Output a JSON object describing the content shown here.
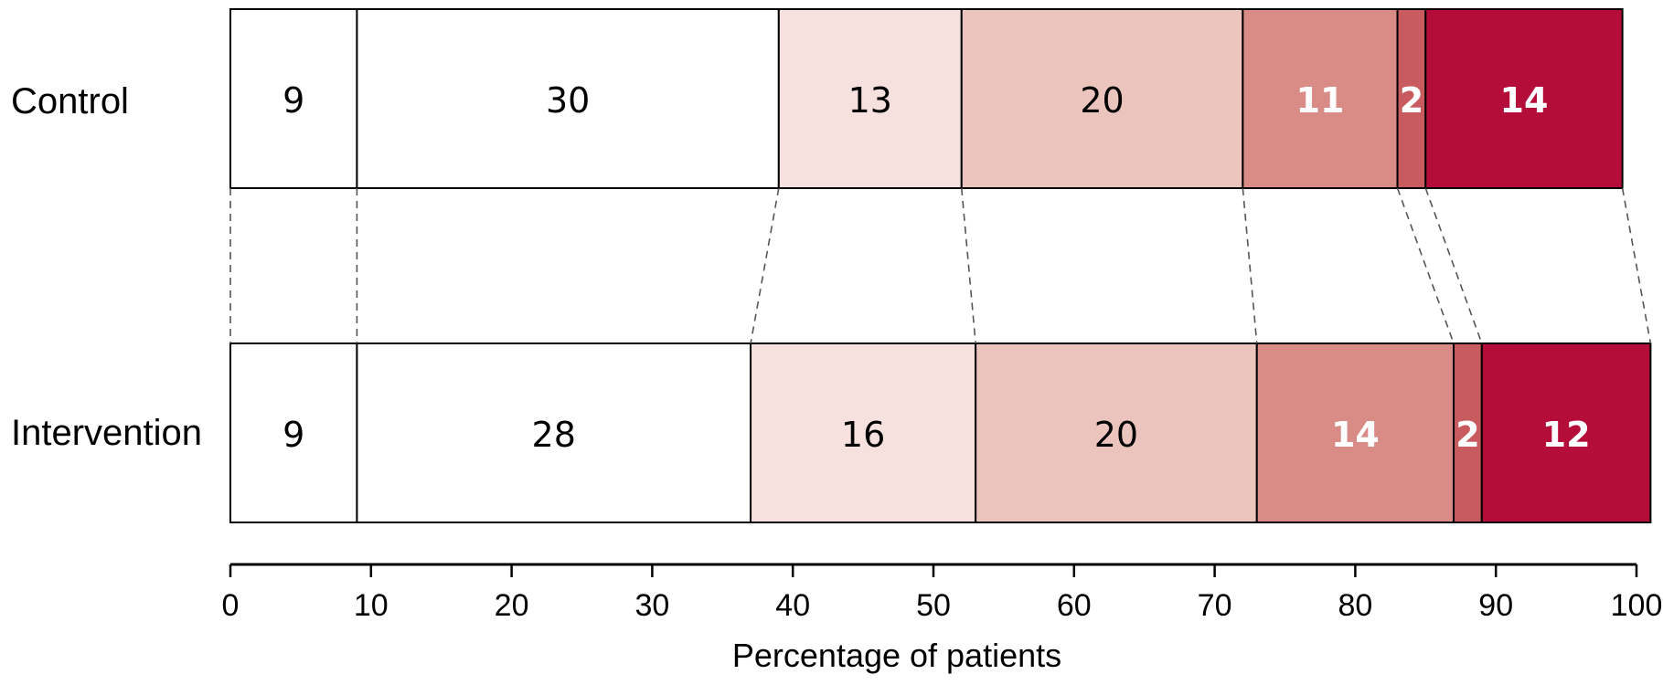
{
  "chart_data": {
    "type": "bar",
    "orientation": "horizontal",
    "stacked": true,
    "title": "",
    "xlabel": "Percentage of patients",
    "ylabel": "",
    "xlim": [
      0,
      100
    ],
    "xticks": [
      0,
      10,
      20,
      30,
      40,
      50,
      60,
      70,
      80,
      90,
      100
    ],
    "grid": false,
    "legend": "none",
    "categories": [
      "Control",
      "Intervention"
    ],
    "series": [
      {
        "color": "#ffffff",
        "label_color": "#000000",
        "values": [
          9,
          9
        ]
      },
      {
        "color": "#ffffff",
        "label_color": "#000000",
        "values": [
          30,
          28
        ]
      },
      {
        "color": "#f6e1de",
        "label_color": "#000000",
        "values": [
          13,
          16
        ]
      },
      {
        "color": "#ecc4be",
        "label_color": "#000000",
        "values": [
          20,
          20
        ]
      },
      {
        "color": "#d98b86",
        "label_color": "#ffffff",
        "values": [
          11,
          14
        ]
      },
      {
        "color": "#c85b5d",
        "label_color": "#ffffff",
        "values": [
          2,
          2
        ]
      },
      {
        "color": "#b50d3a",
        "label_color": "#ffffff",
        "values": [
          14,
          12
        ]
      }
    ],
    "connectors": "dashed lines linking matching segment boundaries between rows"
  }
}
